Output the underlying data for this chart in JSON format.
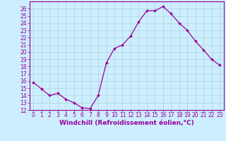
{
  "x": [
    0,
    1,
    2,
    3,
    4,
    5,
    6,
    7,
    8,
    9,
    10,
    11,
    12,
    13,
    14,
    15,
    16,
    17,
    18,
    19,
    20,
    21,
    22,
    23
  ],
  "y": [
    15.8,
    14.9,
    14.0,
    14.3,
    13.5,
    13.0,
    12.3,
    12.2,
    14.0,
    18.5,
    20.5,
    21.0,
    22.2,
    24.2,
    25.7,
    25.7,
    26.3,
    25.3,
    24.0,
    23.0,
    21.5,
    20.3,
    19.0,
    18.2
  ],
  "line_color": "#990099",
  "marker": "D",
  "marker_size": 1.8,
  "bg_color": "#cceeff",
  "grid_color": "#aacccc",
  "xlabel": "Windchill (Refroidissement éolien,°C)",
  "ylabel": "",
  "ylim": [
    12,
    27
  ],
  "xlim": [
    -0.5,
    23.5
  ],
  "yticks": [
    12,
    13,
    14,
    15,
    16,
    17,
    18,
    19,
    20,
    21,
    22,
    23,
    24,
    25,
    26
  ],
  "xticks": [
    0,
    1,
    2,
    3,
    4,
    5,
    6,
    7,
    8,
    9,
    10,
    11,
    12,
    13,
    14,
    15,
    16,
    17,
    18,
    19,
    20,
    21,
    22,
    23
  ],
  "tick_color": "#990099",
  "label_color": "#990099",
  "font_size": 5.5,
  "xlabel_font_size": 6.5,
  "border_color": "#990099",
  "linewidth": 0.9
}
